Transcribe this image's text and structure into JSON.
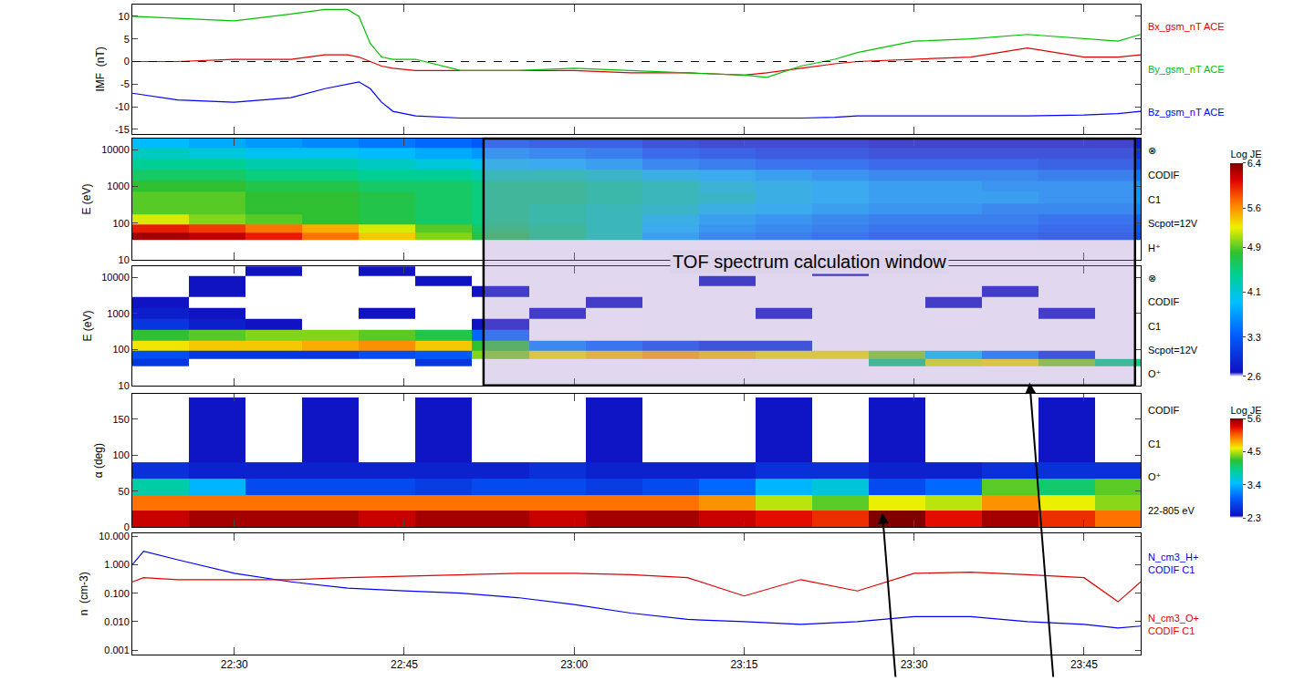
{
  "chart_data": [
    {
      "type": "line",
      "ylabel": "IMF  (nT)",
      "tick_labels": "y",
      "x": [
        1341,
        1345,
        1350,
        1355,
        1358,
        1360,
        1361,
        1362,
        1363,
        1364,
        1366,
        1370,
        1375,
        1380,
        1385,
        1390,
        1395,
        1397,
        1400,
        1403,
        1405,
        1410,
        1415,
        1420,
        1425,
        1428,
        1430
      ],
      "series": [
        {
          "name": "Bx_gsm_nT ACE",
          "color": "#e00000",
          "values": [
            0,
            0,
            0.5,
            0.5,
            1.5,
            1.5,
            1,
            0,
            -1,
            -1.5,
            -2,
            -2,
            -2,
            -2,
            -2.5,
            -2.5,
            -3,
            -2.5,
            -1.5,
            -0.5,
            0,
            0.5,
            1,
            3,
            1,
            1,
            1.5
          ]
        },
        {
          "name": "By_gsm_nT ACE",
          "color": "#00c000",
          "values": [
            10,
            9.5,
            9,
            10.5,
            11.5,
            11.5,
            10,
            4,
            1,
            0.5,
            0.5,
            -2,
            -2,
            -1.5,
            -2,
            -2.5,
            -3,
            -3.5,
            -1,
            0.5,
            2,
            4.5,
            5,
            6,
            5,
            4.5,
            6
          ]
        },
        {
          "name": "Bz_gsm_nT ACE",
          "color": "#0000ff",
          "values": [
            -7,
            -8.5,
            -9,
            -8,
            -6,
            -5,
            -4.5,
            -6,
            -9,
            -11,
            -12,
            -12.5,
            -12.5,
            -12.5,
            -12.5,
            -12.5,
            -12.5,
            -12.5,
            -12.5,
            -12.3,
            -12,
            -12,
            -12,
            -12,
            -11.8,
            -11.5,
            -11
          ]
        }
      ],
      "reference_line": 0,
      "ylim": [
        -16,
        12.6
      ],
      "yticks": [
        -15,
        -10,
        -5,
        0,
        5,
        10
      ]
    },
    {
      "type": "heatmap",
      "ylabel": "E (eV)",
      "log": "y",
      "tick_labels": "y",
      "x_edges": [
        1341,
        1346,
        1351,
        1356,
        1361,
        1366,
        1371,
        1376,
        1381,
        1386,
        1391,
        1396,
        1401,
        1406,
        1411,
        1416,
        1421,
        1426,
        1431
      ],
      "y_edges": [
        35,
        55,
        90,
        170,
        350,
        700,
        1400,
        2800,
        5600,
        11000,
        22000
      ],
      "z": [
        [
          6.3,
          6.2,
          6.0,
          5.7,
          5.4,
          5.0,
          4.7,
          4.5,
          4.3,
          3.8,
          3.6,
          3.5,
          3.4,
          3.3,
          3.3,
          3.3,
          3.2,
          3.2
        ],
        [
          6.0,
          5.9,
          5.7,
          5.5,
          5.2,
          4.9,
          4.6,
          4.5,
          4.3,
          3.9,
          3.7,
          3.6,
          3.5,
          3.4,
          3.4,
          3.4,
          3.3,
          3.3
        ],
        [
          5.2,
          5.0,
          4.9,
          4.8,
          4.7,
          4.6,
          4.5,
          4.4,
          4.3,
          4.0,
          3.8,
          3.7,
          3.6,
          3.5,
          3.5,
          3.5,
          3.4,
          3.4
        ],
        [
          4.9,
          4.9,
          4.8,
          4.8,
          4.7,
          4.6,
          4.5,
          4.4,
          4.3,
          4.2,
          4.0,
          3.9,
          3.8,
          3.7,
          3.7,
          3.6,
          3.6,
          3.6
        ],
        [
          4.9,
          4.9,
          4.8,
          4.8,
          4.7,
          4.6,
          4.5,
          4.5,
          4.4,
          4.3,
          4.2,
          4.0,
          3.9,
          3.8,
          3.8,
          3.8,
          3.7,
          3.7
        ],
        [
          4.8,
          4.8,
          4.7,
          4.7,
          4.6,
          4.6,
          4.5,
          4.5,
          4.4,
          4.3,
          4.1,
          4.0,
          3.9,
          3.8,
          3.8,
          3.7,
          3.7,
          3.7
        ],
        [
          4.6,
          4.6,
          4.5,
          4.5,
          4.4,
          4.4,
          4.3,
          4.3,
          4.2,
          4.0,
          3.9,
          3.8,
          3.7,
          3.6,
          3.6,
          3.6,
          3.5,
          3.5
        ],
        [
          4.4,
          4.4,
          4.3,
          4.3,
          4.2,
          4.1,
          4.0,
          3.9,
          3.8,
          3.6,
          3.5,
          3.4,
          3.4,
          3.3,
          3.3,
          3.3,
          3.2,
          3.2
        ],
        [
          4.2,
          4.1,
          4.0,
          4.0,
          3.9,
          3.8,
          3.7,
          3.6,
          3.5,
          3.3,
          3.2,
          3.1,
          3.1,
          3.0,
          3.0,
          3.0,
          3.0,
          3.0
        ],
        [
          3.9,
          3.8,
          3.7,
          3.6,
          3.5,
          3.4,
          3.3,
          3.2,
          3.2,
          3.0,
          2.9,
          2.9,
          2.9,
          2.8,
          2.8,
          2.8,
          2.8,
          2.8
        ]
      ],
      "ylim": [
        10,
        20000
      ],
      "yticks": [
        10,
        100,
        1000,
        10000
      ],
      "colorbar": {
        "title": "Log JE",
        "range": [
          2.6,
          6.4
        ],
        "ticks": [
          2.6,
          3.3,
          4.1,
          4.9,
          5.6,
          6.4
        ]
      },
      "right_labels": [
        "⊗",
        "CODIF",
        "C1",
        "Scpot=12V",
        "H⁺"
      ]
    },
    {
      "type": "heatmap",
      "ylabel": "E (eV)",
      "log": "y",
      "tick_labels": "y",
      "x_edges": [
        1341,
        1346,
        1351,
        1356,
        1361,
        1366,
        1371,
        1376,
        1381,
        1386,
        1391,
        1396,
        1401,
        1406,
        1411,
        1416,
        1421,
        1426,
        1431
      ],
      "y_edges": [
        35,
        55,
        90,
        170,
        350,
        700,
        1400,
        2800,
        5600,
        11000,
        22000
      ],
      "z": [
        [
          3.0,
          null,
          null,
          null,
          null,
          3.0,
          null,
          null,
          null,
          null,
          null,
          null,
          null,
          4.5,
          5.2,
          5.3,
          5.0,
          4.5
        ],
        [
          3.2,
          3.0,
          3.0,
          3.0,
          3.2,
          3.3,
          5.0,
          5.3,
          5.4,
          5.5,
          5.4,
          5.3,
          5.3,
          5.0,
          4.0,
          3.5,
          3.0,
          null
        ],
        [
          5.3,
          5.4,
          5.4,
          5.5,
          5.6,
          5.4,
          4.8,
          3.6,
          3.4,
          3.2,
          3.0,
          3.0,
          null,
          null,
          null,
          null,
          null,
          null
        ],
        [
          4.8,
          4.9,
          5.0,
          5.0,
          4.9,
          4.7,
          3.4,
          null,
          null,
          null,
          null,
          null,
          null,
          null,
          null,
          null,
          null,
          null
        ],
        [
          3.0,
          2.8,
          2.7,
          null,
          null,
          null,
          2.7,
          null,
          null,
          null,
          null,
          null,
          null,
          null,
          null,
          null,
          null,
          null
        ],
        [
          2.8,
          2.7,
          null,
          null,
          2.7,
          null,
          null,
          2.7,
          null,
          null,
          null,
          2.7,
          null,
          null,
          null,
          null,
          2.7,
          null
        ],
        [
          2.7,
          null,
          null,
          null,
          null,
          null,
          null,
          null,
          2.7,
          null,
          null,
          null,
          null,
          null,
          2.7,
          null,
          null,
          null
        ],
        [
          null,
          2.7,
          null,
          null,
          null,
          null,
          2.7,
          null,
          null,
          null,
          null,
          null,
          null,
          null,
          null,
          2.7,
          null,
          null
        ],
        [
          null,
          2.7,
          null,
          null,
          null,
          2.7,
          null,
          null,
          null,
          null,
          2.7,
          null,
          null,
          null,
          null,
          null,
          null,
          null
        ],
        [
          null,
          null,
          2.7,
          null,
          2.7,
          null,
          null,
          null,
          null,
          null,
          null,
          null,
          2.7,
          null,
          null,
          null,
          null,
          null
        ]
      ],
      "zlim": [
        2.6,
        6.4
      ],
      "ylim": [
        10,
        20000
      ],
      "yticks": [
        10,
        100,
        1000,
        10000
      ],
      "right_labels": [
        "⊗",
        "CODIF",
        "C1",
        "Scpot=12V",
        "O⁺"
      ],
      "arrows": [
        {
          "x": 1420.2,
          "y": 12
        }
      ]
    },
    {
      "type": "heatmap",
      "ylabel": "α (deg)",
      "tick_labels": "y",
      "x_edges": [
        1341,
        1346,
        1351,
        1356,
        1361,
        1366,
        1371,
        1376,
        1381,
        1386,
        1391,
        1396,
        1401,
        1406,
        1411,
        1416,
        1421,
        1426,
        1431
      ],
      "y_edges": [
        0,
        22.5,
        45,
        67.5,
        90,
        180
      ],
      "z": [
        [
          5.4,
          5.5,
          5.5,
          5.5,
          5.4,
          5.5,
          5.5,
          5.4,
          5.5,
          5.5,
          5.4,
          5.3,
          5.2,
          5.6,
          5.3,
          5.5,
          5.2,
          5.0
        ],
        [
          5.0,
          5.0,
          5.0,
          5.0,
          5.0,
          5.0,
          5.0,
          5.0,
          5.0,
          5.0,
          4.9,
          4.5,
          4.3,
          4.6,
          4.5,
          4.9,
          4.6,
          4.4
        ],
        [
          3.8,
          3.4,
          2.8,
          2.8,
          2.8,
          2.7,
          2.8,
          2.8,
          2.7,
          2.8,
          3.0,
          3.4,
          3.6,
          2.8,
          3.0,
          4.3,
          4.0,
          4.3
        ],
        [
          2.6,
          2.5,
          2.5,
          2.5,
          2.5,
          2.5,
          2.5,
          2.6,
          2.5,
          2.5,
          2.5,
          2.6,
          2.6,
          2.5,
          2.5,
          2.6,
          2.6,
          2.6
        ],
        [
          null,
          2.4,
          null,
          2.4,
          null,
          2.4,
          null,
          null,
          2.4,
          null,
          null,
          2.4,
          null,
          2.4,
          null,
          null,
          2.4,
          null
        ]
      ],
      "ylim": [
        0,
        185
      ],
      "yticks": [
        0,
        50,
        100,
        150
      ],
      "colorbar": {
        "title": "Log JE",
        "range": [
          2.3,
          5.6
        ],
        "ticks": [
          2.3,
          3.4,
          4.5,
          5.6
        ]
      },
      "right_labels": [
        "CODIF",
        "C1",
        "O⁺",
        "22-805 eV"
      ],
      "arrows": [
        {
          "x": 1407.2,
          "y": 20
        }
      ]
    },
    {
      "type": "line",
      "ylabel": "n  (cm-3)",
      "log": "y",
      "x": [
        1341,
        1342,
        1345,
        1350,
        1355,
        1360,
        1365,
        1370,
        1375,
        1380,
        1385,
        1390,
        1395,
        1400,
        1405,
        1410,
        1415,
        1420,
        1425,
        1428,
        1430
      ],
      "series": [
        {
          "name": "N_cm3_H+",
          "instrument": "CODIF C1",
          "color": "#0000ff",
          "values": [
            1,
            3,
            1.5,
            0.5,
            0.25,
            0.15,
            0.12,
            0.1,
            0.07,
            0.04,
            0.02,
            0.012,
            0.01,
            0.008,
            0.01,
            0.015,
            0.015,
            0.01,
            0.008,
            0.006,
            0.007
          ]
        },
        {
          "name": "N_cm3_O+",
          "instrument": "CODIF C1",
          "color": "#e00000",
          "values": [
            0.25,
            0.35,
            0.3,
            0.3,
            0.3,
            0.35,
            0.4,
            0.45,
            0.5,
            0.5,
            0.45,
            0.35,
            0.08,
            0.3,
            0.12,
            0.5,
            0.55,
            0.45,
            0.35,
            0.05,
            0.25
          ]
        }
      ],
      "ylim": [
        0.0007,
        13
      ],
      "yticks": [
        0.001,
        {
          "value": 0.01,
          "label": "0.010"
        },
        {
          "value": 0.1,
          "label": "0.100"
        },
        {
          "value": 1,
          "label": "1.000"
        },
        {
          "value": 10,
          "label": "10.000"
        }
      ],
      "xlim": [
        1341,
        1430
      ],
      "xticks": [
        {
          "value": 1350,
          "label": "22:30"
        },
        {
          "value": 1365,
          "label": "22:45"
        },
        {
          "value": 1380,
          "label": "23:00"
        },
        {
          "value": 1395,
          "label": "23:15"
        },
        {
          "value": 1410,
          "label": "23:30"
        },
        {
          "value": 1425,
          "label": "23:45"
        }
      ]
    }
  ],
  "window": {
    "x0": 1372,
    "x1": 1429.5,
    "text": "TOF spectrum calculation window"
  }
}
